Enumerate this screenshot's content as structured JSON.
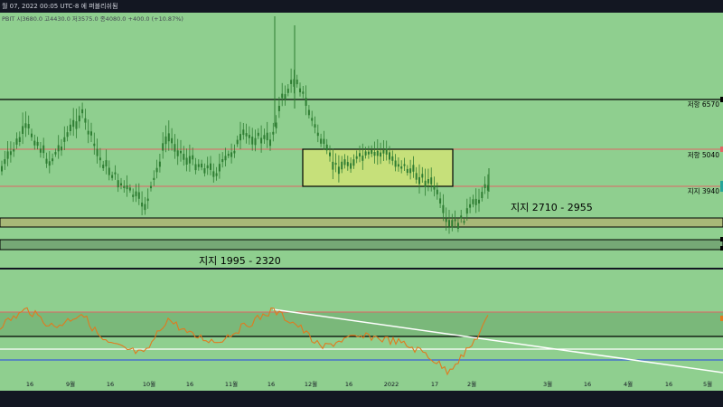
{
  "header": {
    "datetime": "월 07, 2022 00:05 UTC-8 에 퍼블리쉬됨",
    "ohlc": "PBIT  시3680.0  고4430.0  저3575.0  종4080.0  +400.0 (+10.87%)"
  },
  "colors": {
    "background": "#8fcf8f",
    "candle": "#2e7d32",
    "resistance_line": "#e06666",
    "black_line": "#000000",
    "support_zone": "#a8b878",
    "accumulation_box": "#c6e07a",
    "rsi_line": "#e07a1f",
    "rsi_trendline": "#ffffff",
    "rsi_band_line": "#3a5fd8"
  },
  "labels": {
    "res_6570": "저항 6570",
    "res_5040": "저항 5040",
    "sup_3940": "지지 3940",
    "sup_2710": "지지 2710 - 2955",
    "sup_1995": "지지 1995 - 2320"
  },
  "x_ticks": [
    "16",
    "9월",
    "16",
    "10월",
    "16",
    "11월",
    "16",
    "12월",
    "16",
    "2022",
    "17",
    "2월",
    "3월",
    "16",
    "4월",
    "16",
    "5월"
  ],
  "chart_data": {
    "type": "candlestick",
    "title": "",
    "xlabel": "",
    "ylabel": "",
    "levels": [
      {
        "label": "저항 6570",
        "value": 6570
      },
      {
        "label": "저항 5040",
        "value": 5040
      },
      {
        "label": "지지 3940",
        "value": 3940
      },
      {
        "label": "지지 2710 - 2955",
        "range": [
          2710,
          2955
        ]
      },
      {
        "label": "지지 1995 - 2320",
        "range": [
          1995,
          2320
        ]
      }
    ],
    "last_candle": {
      "open": 3680.0,
      "high": 4430.0,
      "low": 3575.0,
      "close": 4080.0,
      "change": 400.0,
      "change_pct": 10.87
    }
  }
}
